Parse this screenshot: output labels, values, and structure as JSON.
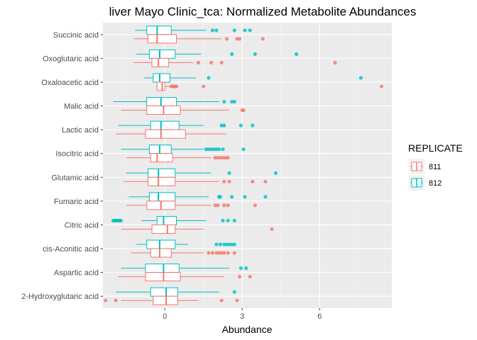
{
  "chart_data": {
    "type": "boxplot",
    "orientation": "horizontal",
    "title": "liver Mayo Clinic_tca: Normalized Metabolite Abundances",
    "xlabel": "Abundance",
    "ylabel": "",
    "xlim": [
      -2.4,
      8.8
    ],
    "x_ticks": [
      0,
      3,
      6
    ],
    "grid": true,
    "legend": {
      "title": "REPLICATE",
      "placement": "right"
    },
    "series": [
      {
        "name": "811",
        "color": "#F8766D"
      },
      {
        "name": "812",
        "color": "#00BFC4"
      }
    ],
    "categories": [
      "Succinic acid",
      "Oxoglutaric acid",
      "Oxaloacetic acid",
      "Malic acid",
      "Lactic acid",
      "Isocitric acid",
      "Glutamic acid",
      "Fumaric acid",
      "Citric acid",
      "cis-Aconitic acid",
      "Aspartic acid",
      "2-Hydroxyglutaric acid"
    ],
    "boxes": [
      {
        "category": "Succinic acid",
        "series": "812",
        "whisker_low": -1.15,
        "q1": -0.7,
        "median": -0.3,
        "q3": 0.25,
        "whisker_high": 1.6,
        "outliers": [
          1.85,
          2.0,
          2.7,
          3.1,
          3.3
        ]
      },
      {
        "category": "Succinic acid",
        "series": "811",
        "whisker_low": -1.2,
        "q1": -0.65,
        "median": -0.3,
        "q3": 0.45,
        "whisker_high": 2.2,
        "outliers": [
          2.4,
          2.8,
          2.9,
          3.8
        ]
      },
      {
        "category": "Oxoglutaric acid",
        "series": "812",
        "whisker_low": -1.1,
        "q1": -0.6,
        "median": -0.2,
        "q3": 0.4,
        "whisker_high": 1.4,
        "outliers": [
          2.6,
          3.5,
          5.1
        ]
      },
      {
        "category": "Oxoglutaric acid",
        "series": "811",
        "whisker_low": -1.2,
        "q1": -0.5,
        "median": -0.25,
        "q3": 0.15,
        "whisker_high": 1.1,
        "outliers": [
          1.3,
          1.8,
          2.2,
          6.6
        ]
      },
      {
        "category": "Oxaloacetic acid",
        "series": "812",
        "whisker_low": -0.8,
        "q1": -0.45,
        "median": -0.2,
        "q3": 0.2,
        "whisker_high": 1.2,
        "outliers": [
          1.7,
          7.6
        ]
      },
      {
        "category": "Oxaloacetic acid",
        "series": "811",
        "whisker_low": -0.35,
        "q1": -0.3,
        "median": -0.1,
        "q3": 0.0,
        "whisker_high": 0.2,
        "outliers": [
          0.25,
          0.3,
          0.35,
          0.4,
          0.45,
          1.5,
          8.4
        ]
      },
      {
        "category": "Malic acid",
        "series": "812",
        "whisker_low": -2.0,
        "q1": -0.7,
        "median": -0.15,
        "q3": 0.45,
        "whisker_high": 2.1,
        "outliers": [
          2.3,
          2.6,
          2.7
        ]
      },
      {
        "category": "Malic acid",
        "series": "811",
        "whisker_low": -1.7,
        "q1": -0.7,
        "median": -0.05,
        "q3": 0.6,
        "whisker_high": 2.5,
        "outliers": [
          3.0,
          3.05
        ]
      },
      {
        "category": "Lactic acid",
        "series": "812",
        "whisker_low": -1.8,
        "q1": -0.55,
        "median": -0.15,
        "q3": 0.55,
        "whisker_high": 1.5,
        "outliers": [
          2.2,
          2.3,
          2.95,
          3.4
        ]
      },
      {
        "category": "Lactic acid",
        "series": "811",
        "whisker_low": -1.9,
        "q1": -0.75,
        "median": -0.15,
        "q3": 0.8,
        "whisker_high": 2.4,
        "outliers": []
      },
      {
        "category": "Isocitric acid",
        "series": "812",
        "whisker_low": -1.7,
        "q1": -0.6,
        "median": -0.2,
        "q3": 0.25,
        "whisker_high": 1.5,
        "outliers": [
          1.6,
          1.7,
          1.8,
          1.9,
          2.0,
          2.1,
          2.25,
          3.05
        ]
      },
      {
        "category": "Isocitric acid",
        "series": "811",
        "whisker_low": -1.5,
        "q1": -0.55,
        "median": -0.3,
        "q3": 0.3,
        "whisker_high": 1.8,
        "outliers": [
          1.95,
          2.05,
          2.15,
          2.25,
          2.35,
          2.45
        ]
      },
      {
        "category": "Glutamic acid",
        "series": "812",
        "whisker_low": -1.5,
        "q1": -0.65,
        "median": -0.25,
        "q3": 0.4,
        "whisker_high": 1.8,
        "outliers": [
          2.5,
          4.3
        ]
      },
      {
        "category": "Glutamic acid",
        "series": "811",
        "whisker_low": -1.6,
        "q1": -0.65,
        "median": -0.25,
        "q3": 0.4,
        "whisker_high": 2.1,
        "outliers": [
          2.3,
          2.5,
          3.4,
          3.9
        ]
      },
      {
        "category": "Fumaric acid",
        "series": "812",
        "whisker_low": -1.4,
        "q1": -0.6,
        "median": -0.25,
        "q3": 0.4,
        "whisker_high": 1.7,
        "outliers": [
          2.1,
          2.15,
          2.6,
          3.1,
          3.9
        ]
      },
      {
        "category": "Fumaric acid",
        "series": "811",
        "whisker_low": -1.5,
        "q1": -0.7,
        "median": -0.15,
        "q3": 0.4,
        "whisker_high": 1.8,
        "outliers": [
          1.95,
          2.05,
          2.3,
          2.45,
          3.5
        ]
      },
      {
        "category": "Citric acid",
        "series": "812",
        "whisker_low": -0.9,
        "q1": -0.3,
        "median": -0.05,
        "q3": 0.45,
        "whisker_high": 1.6,
        "outliers": [
          -2.0,
          -1.95,
          -1.9,
          -1.85,
          -1.8,
          -1.75,
          -1.7,
          2.25,
          2.45,
          2.7
        ]
      },
      {
        "category": "Citric acid",
        "series": "811",
        "whisker_low": -1.7,
        "q1": -0.5,
        "median": 0.1,
        "q3": 0.4,
        "whisker_high": 1.5,
        "outliers": [
          4.15
        ]
      },
      {
        "category": "cis-Aconitic acid",
        "series": "812",
        "whisker_low": -1.1,
        "q1": -0.7,
        "median": -0.2,
        "q3": 0.4,
        "whisker_high": 0.9,
        "outliers": [
          2.0,
          2.15,
          2.3,
          2.4,
          2.5,
          2.6,
          2.7
        ]
      },
      {
        "category": "cis-Aconitic acid",
        "series": "811",
        "whisker_low": -1.3,
        "q1": -0.55,
        "median": -0.2,
        "q3": 0.25,
        "whisker_high": 1.5,
        "outliers": [
          1.7,
          1.85,
          2.0,
          2.1,
          2.2,
          2.3,
          2.45,
          2.7
        ]
      },
      {
        "category": "Aspartic acid",
        "series": "812",
        "whisker_low": -1.7,
        "q1": -0.75,
        "median": -0.05,
        "q3": 0.55,
        "whisker_high": 2.5,
        "outliers": [
          2.95,
          3.15
        ]
      },
      {
        "category": "Aspartic acid",
        "series": "811",
        "whisker_low": -1.8,
        "q1": -0.75,
        "median": -0.05,
        "q3": 0.6,
        "whisker_high": 2.3,
        "outliers": [
          2.9,
          3.3
        ]
      },
      {
        "category": "2-Hydroxyglutaric acid",
        "series": "812",
        "whisker_low": -1.9,
        "q1": -0.55,
        "median": 0.05,
        "q3": 0.5,
        "whisker_high": 2.1,
        "outliers": [
          2.7
        ]
      },
      {
        "category": "2-Hydroxyglutaric acid",
        "series": "811",
        "whisker_low": -1.7,
        "q1": -0.45,
        "median": 0.05,
        "q3": 0.5,
        "whisker_high": 1.3,
        "outliers": [
          -2.3,
          -1.9,
          2.2,
          2.8
        ]
      }
    ]
  }
}
